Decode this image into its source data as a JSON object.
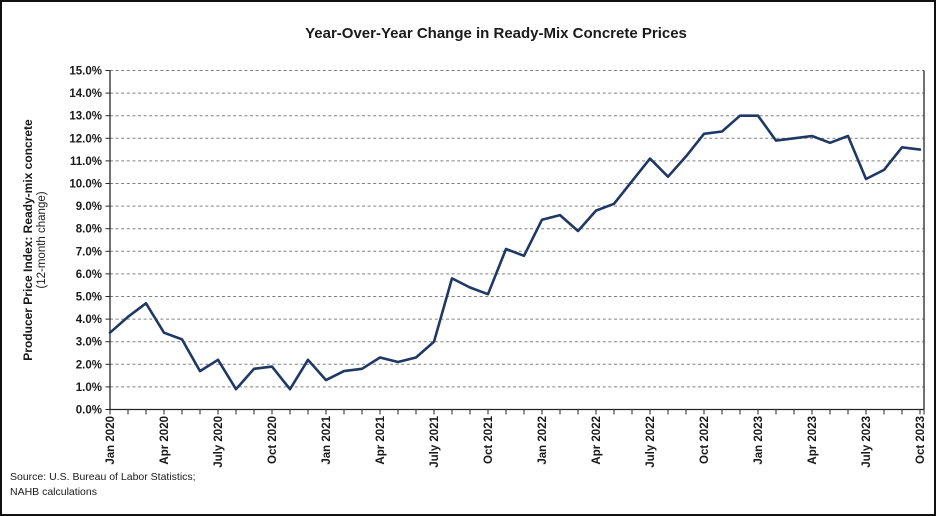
{
  "window": {
    "background": "#ffffff",
    "border_color": "#111111"
  },
  "chart_data": {
    "type": "line",
    "title": "Year-Over-Year Change in Ready-Mix Concrete Prices",
    "y_axis_title_line1": "Producer Price Index: Ready-mix concrete",
    "y_axis_title_line2": "(12-month change)",
    "x": [
      "Jan 2020",
      "Feb 2020",
      "Mar 2020",
      "Apr 2020",
      "May 2020",
      "Jun 2020",
      "July 2020",
      "Aug 2020",
      "Sep 2020",
      "Oct 2020",
      "Nov 2020",
      "Dec 2020",
      "Jan 2021",
      "Feb 2021",
      "Mar 2021",
      "Apr 2021",
      "May 2021",
      "Jun 2021",
      "July 2021",
      "Aug 2021",
      "Sep 2021",
      "Oct 2021",
      "Nov 2021",
      "Dec 2021",
      "Jan 2022",
      "Feb 2022",
      "Mar 2022",
      "Apr 2022",
      "May 2022",
      "Jun 2022",
      "July 2022",
      "Aug 2022",
      "Sep 2022",
      "Oct 2022",
      "Nov 2022",
      "Dec 2022",
      "Jan 2023",
      "Feb 2023",
      "Mar 2023",
      "Apr 2023",
      "May 2023",
      "Jun 2023",
      "July 2023",
      "Aug 2023",
      "Sep 2023",
      "Oct 2023"
    ],
    "values": [
      3.4,
      4.1,
      4.7,
      3.4,
      3.1,
      1.7,
      2.2,
      0.9,
      1.8,
      1.9,
      0.9,
      2.2,
      1.3,
      1.7,
      1.8,
      2.3,
      2.1,
      2.3,
      3.0,
      5.8,
      5.4,
      5.1,
      7.1,
      6.8,
      8.4,
      8.6,
      7.9,
      8.8,
      9.1,
      10.1,
      11.1,
      10.3,
      11.2,
      12.2,
      12.3,
      13.0,
      13.0,
      11.9,
      12.0,
      12.1,
      11.8,
      12.1,
      10.2,
      10.6,
      11.6,
      11.5
    ],
    "x_tick_labels": [
      "Jan 2020",
      "Apr 2020",
      "July 2020",
      "Oct 2020",
      "Jan 2021",
      "Apr 2021",
      "July 2021",
      "Oct 2021",
      "Jan 2022",
      "Apr 2022",
      "July 2022",
      "Oct 2022",
      "Jan 2023",
      "Apr 2023",
      "July 2023",
      "Oct 2023"
    ],
    "x_tick_every": 3,
    "y_tick_labels": [
      "0.0%",
      "1.0%",
      "2.0%",
      "3.0%",
      "4.0%",
      "5.0%",
      "6.0%",
      "7.0%",
      "8.0%",
      "9.0%",
      "10.0%",
      "11.0%",
      "12.0%",
      "13.0%",
      "14.0%",
      "15.0%"
    ],
    "ylim": [
      0,
      15
    ],
    "grid": "horizontal-dashed",
    "legend": "none",
    "line_color": "#1f3864",
    "grid_color": "#808080",
    "axis_color": "#262626",
    "text_color": "#1a1a1a"
  },
  "source": {
    "line1": "Source: U.S. Bureau of Labor Statistics;",
    "line2": "NAHB calculations"
  }
}
